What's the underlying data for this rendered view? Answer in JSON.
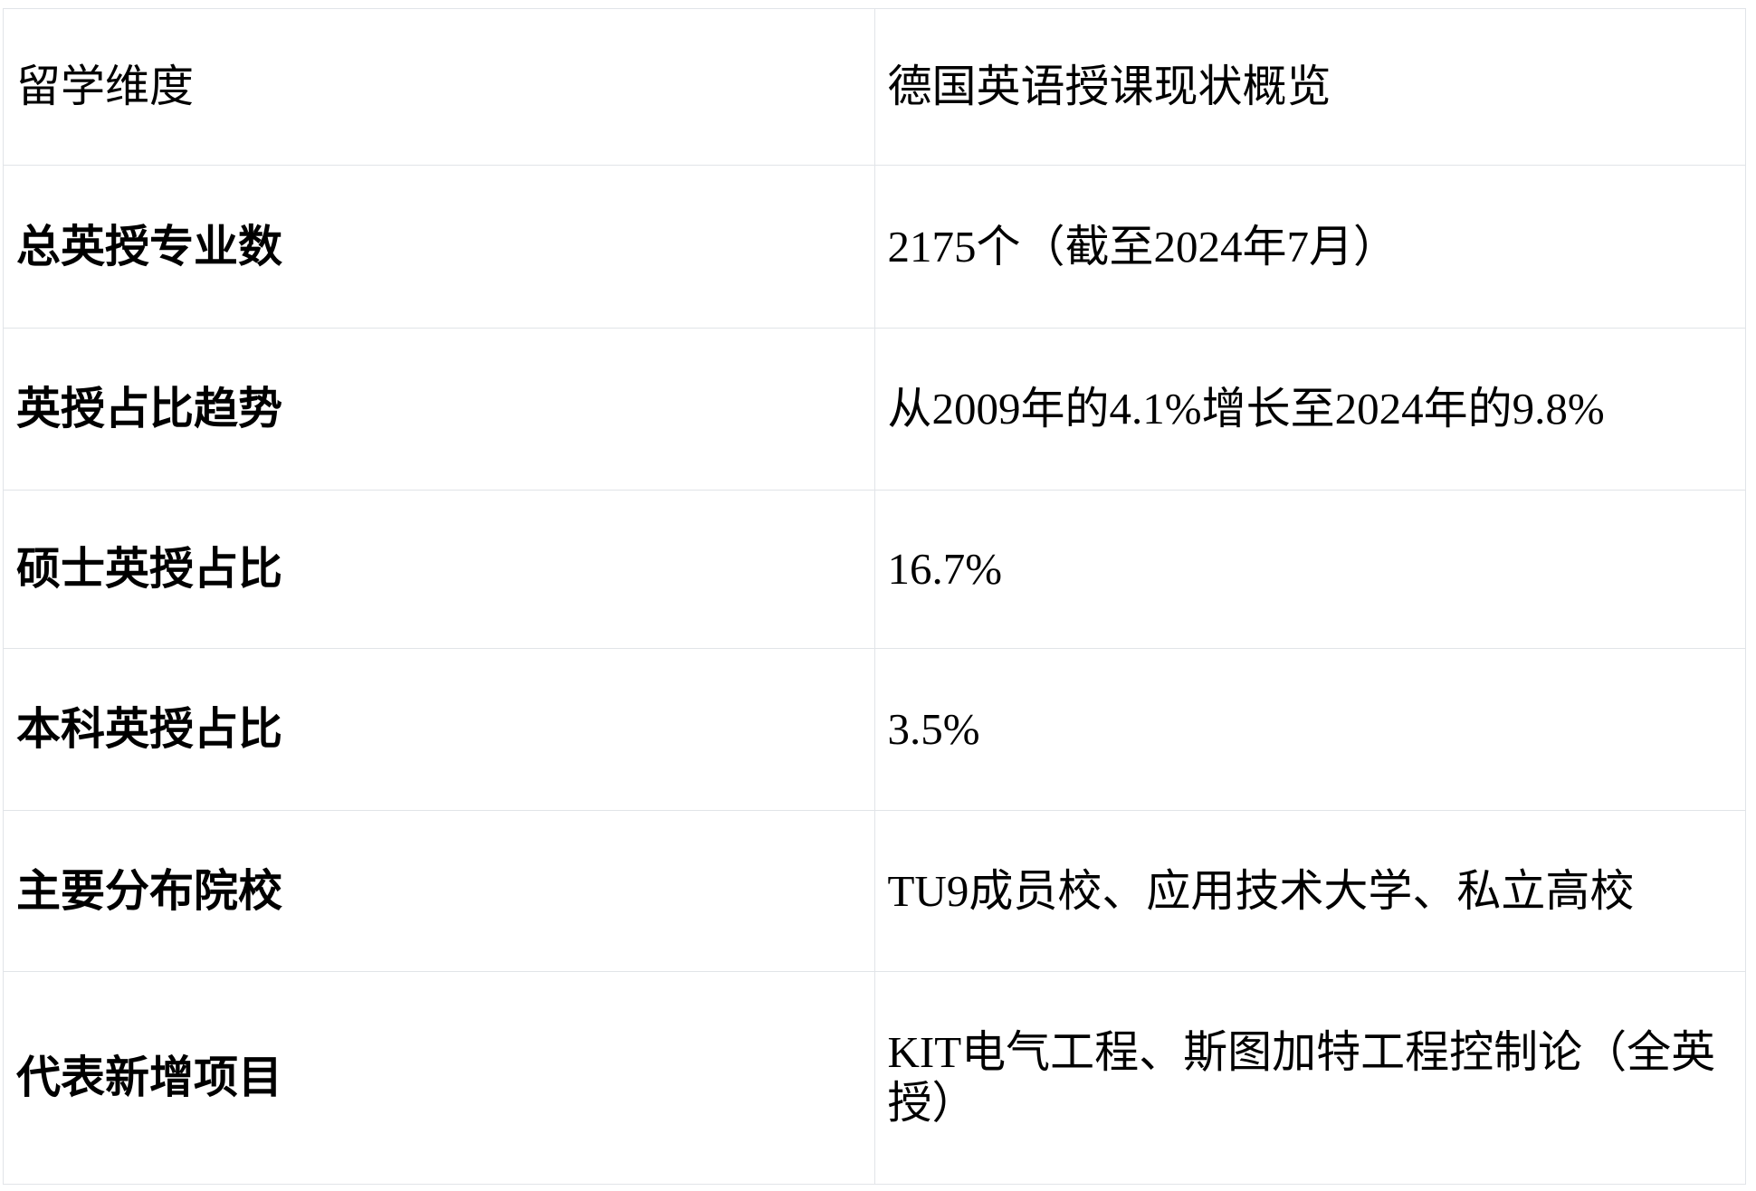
{
  "table": {
    "title_semantic": "德国英语授课现状概览表",
    "colors": {
      "background": "#ffffff",
      "border": "#e1e4e8",
      "text": "#000000"
    },
    "header": {
      "dimension": "留学维度",
      "overview": "德国英语授课现状概览"
    },
    "rows": [
      {
        "label": "总英授专业数",
        "value": "2175个（截至2024年7月）"
      },
      {
        "label": "英授占比趋势",
        "value": "从2009年的4.1%增长至2024年的9.8%"
      },
      {
        "label": "硕士英授占比",
        "value": "16.7%"
      },
      {
        "label": "本科英授占比",
        "value": "3.5%"
      },
      {
        "label": "主要分布院校",
        "value": "TU9成员校、应用技术大学、私立高校"
      },
      {
        "label": "代表新增项目",
        "value": "KIT电气工程、斯图加特工程控制论（全英授）"
      }
    ]
  }
}
